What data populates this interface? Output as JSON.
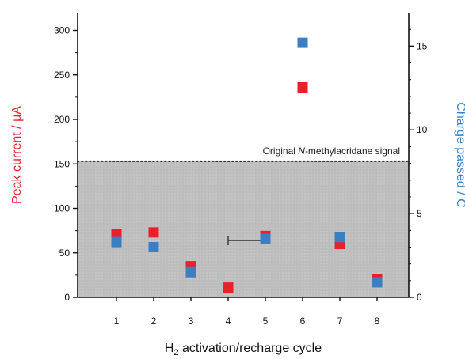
{
  "chart_data": {
    "type": "scatter",
    "x_categories": [
      "1",
      "2",
      "3",
      "4",
      "5",
      "6",
      "7",
      "8"
    ],
    "xlabel": {
      "pre": "H",
      "sub": "2",
      "post": " activation/recharge cycle"
    },
    "ylabel_left": "Peak current / μA",
    "ylabel_right": "Charge passed / C",
    "ylim_left": [
      0,
      320
    ],
    "ylim_right": [
      0,
      17
    ],
    "yticks_left": [
      0,
      50,
      100,
      150,
      200,
      250,
      300
    ],
    "yticks_right": [
      0,
      5,
      10,
      15
    ],
    "series": [
      {
        "axis": "left",
        "color": "#e8202a",
        "marker": "square",
        "points": [
          {
            "x": 1,
            "y": 71
          },
          {
            "x": 2,
            "y": 73
          },
          {
            "x": 3,
            "y": 35
          },
          {
            "x": 4,
            "y": 11
          },
          {
            "x": 5,
            "y": 69
          },
          {
            "x": 6,
            "y": 236
          },
          {
            "x": 7,
            "y": 60
          },
          {
            "x": 8,
            "y": 20
          }
        ]
      },
      {
        "axis": "right",
        "color": "#3a7fc1",
        "marker": "square",
        "points": [
          {
            "x": 1,
            "y": 3.3
          },
          {
            "x": 2,
            "y": 3.0
          },
          {
            "x": 3,
            "y": 1.5
          },
          {
            "x": 5,
            "y": 3.5
          },
          {
            "x": 6,
            "y": 15.2
          },
          {
            "x": 7,
            "y": 3.6
          },
          {
            "x": 8,
            "y": 0.9
          }
        ]
      }
    ],
    "reference_line": {
      "label_pre": "Original ",
      "label_italic": "N",
      "label_post": "-methylacridane signal",
      "y_left": 153,
      "style": "dotted",
      "shaded_below": true,
      "shade_color": "#bdbdbd"
    },
    "error_bar": {
      "x_from": 4,
      "x_to": 5,
      "y_left": 64
    }
  }
}
